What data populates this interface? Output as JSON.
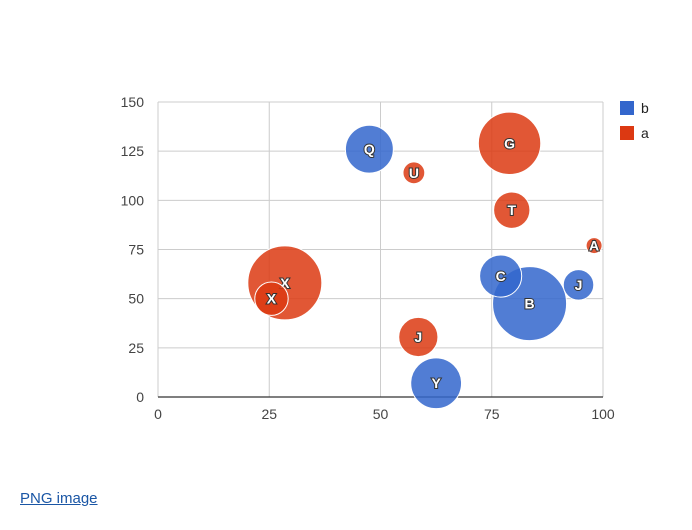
{
  "link": {
    "label": "PNG image"
  },
  "chart_data": {
    "type": "scatter",
    "subtype": "bubble",
    "x_range": [
      0,
      100
    ],
    "y_range": [
      0,
      150
    ],
    "x_ticks": [
      0,
      25,
      50,
      75,
      100
    ],
    "y_ticks": [
      0,
      25,
      50,
      75,
      100,
      125,
      150
    ],
    "grid": true,
    "legend_position": "right",
    "series": [
      {
        "name": "b",
        "color": "#3366cc",
        "points": [
          {
            "label": "Q",
            "x": 47.5,
            "y": 126,
            "size": 0.55
          },
          {
            "label": "C",
            "x": 77,
            "y": 61.5,
            "size": 0.45
          },
          {
            "label": "B",
            "x": 83.5,
            "y": 47.5,
            "size": 1.0
          },
          {
            "label": "J",
            "x": 94.5,
            "y": 57,
            "size": 0.25
          },
          {
            "label": "Y",
            "x": 62.5,
            "y": 7,
            "size": 0.6
          }
        ]
      },
      {
        "name": "a",
        "color": "#dc3912",
        "points": [
          {
            "label": "G",
            "x": 79,
            "y": 129,
            "size": 0.8
          },
          {
            "label": "U",
            "x": 57.5,
            "y": 114,
            "size": 0.1
          },
          {
            "label": "T",
            "x": 79.5,
            "y": 95,
            "size": 0.35
          },
          {
            "label": "A",
            "x": 98,
            "y": 77,
            "size": 0.0
          },
          {
            "label": "X",
            "x": 28.5,
            "y": 58,
            "size": 1.0
          },
          {
            "label": "X",
            "x": 25.5,
            "y": 50,
            "size": 0.3
          },
          {
            "label": "J",
            "x": 58.5,
            "y": 30.5,
            "size": 0.4
          }
        ]
      }
    ]
  }
}
